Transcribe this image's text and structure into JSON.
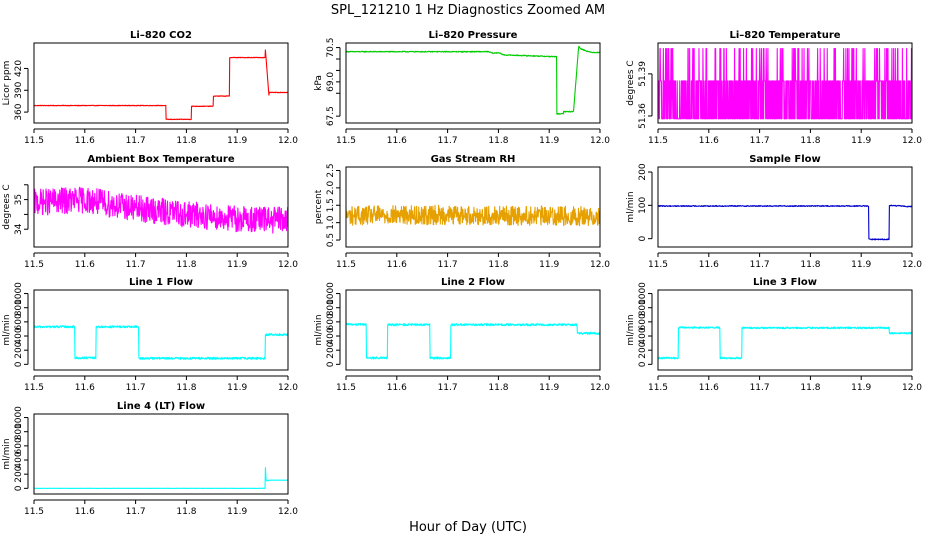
{
  "figure": {
    "title": "SPL_121210  1 Hz Diagnostics Zoomed AM",
    "xlabel": "Hour of Day (UTC)"
  },
  "chart_data": [
    {
      "type": "line",
      "title": "Li–820 CO2",
      "ylabel": "Licor ppm",
      "color": "#ff0000",
      "xlim": [
        11.5,
        12.0
      ],
      "ylim": [
        345,
        455
      ],
      "xticks": [
        11.5,
        11.6,
        11.7,
        11.8,
        11.9,
        12.0
      ],
      "yticks": [
        360,
        390,
        420
      ],
      "noise": 0.4,
      "x": [
        11.5,
        11.76,
        11.76,
        11.81,
        11.81,
        11.853,
        11.853,
        11.885,
        11.885,
        11.955,
        11.955,
        11.963,
        11.963,
        12.0
      ],
      "y": [
        369,
        369,
        350,
        350,
        368,
        368,
        382,
        382,
        435,
        435,
        450,
        378,
        387,
        387
      ]
    },
    {
      "type": "line",
      "title": "Li–820 Pressure",
      "ylabel": "kPa",
      "color": "#00cc00",
      "xlim": [
        11.5,
        12.0
      ],
      "ylim": [
        67.2,
        70.7
      ],
      "xticks": [
        11.5,
        11.6,
        11.7,
        11.8,
        11.9,
        12.0
      ],
      "yticks": [
        67.5,
        68.5,
        69.0,
        69.5,
        70.0,
        70.5
      ],
      "ytick_labels_shown": [
        67.5,
        69.0,
        70.5
      ],
      "noise": 0.02,
      "x": [
        11.5,
        11.78,
        11.79,
        11.8,
        11.81,
        11.915,
        11.915,
        11.928,
        11.928,
        11.948,
        11.948,
        11.958,
        11.962,
        11.98,
        12.0
      ],
      "y": [
        70.32,
        70.32,
        70.25,
        70.28,
        70.18,
        70.1,
        67.6,
        67.6,
        67.7,
        67.7,
        67.75,
        70.55,
        70.45,
        70.3,
        70.28
      ]
    },
    {
      "type": "line",
      "title": "Li–820 Temperature",
      "ylabel": "degrees C",
      "color": "#ff00ff",
      "xlim": [
        11.5,
        12.0
      ],
      "ylim": [
        51.355,
        51.412
      ],
      "xticks": [
        11.5,
        11.6,
        11.7,
        11.8,
        11.9,
        12.0
      ],
      "yticks": [
        51.36,
        51.39
      ],
      "pattern": "toggle",
      "levels": [
        51.358,
        51.385,
        51.408
      ]
    },
    {
      "type": "line",
      "title": "Ambient Box Temperature",
      "ylabel": "degrees C",
      "color": "#ff00ff",
      "xlim": [
        11.5,
        12.0
      ],
      "ylim": [
        33.4,
        36.1
      ],
      "xticks": [
        11.5,
        11.6,
        11.7,
        11.8,
        11.9,
        12.0
      ],
      "yticks": [
        34.0,
        34.5,
        35.0,
        35.5
      ],
      "ytick_labels_shown": [
        34.0,
        35.0
      ],
      "noise": 0.45,
      "x": [
        11.5,
        11.6,
        11.7,
        11.8,
        11.9,
        12.0
      ],
      "y": [
        34.9,
        35.0,
        34.7,
        34.5,
        34.35,
        34.3
      ]
    },
    {
      "type": "line",
      "title": "Gas Stream RH",
      "ylabel": "percent",
      "color": "#e6a000",
      "xlim": [
        11.5,
        12.0
      ],
      "ylim": [
        0.3,
        2.6
      ],
      "xticks": [
        11.5,
        11.6,
        11.7,
        11.8,
        11.9,
        12.0
      ],
      "yticks": [
        0.5,
        1.0,
        1.5,
        2.0,
        2.5
      ],
      "noise": 0.28,
      "x": [
        11.5,
        11.6,
        11.7,
        11.8,
        11.9,
        12.0
      ],
      "y": [
        1.2,
        1.22,
        1.22,
        1.2,
        1.2,
        1.18
      ]
    },
    {
      "type": "line",
      "title": "Sample Flow",
      "ylabel": "ml/min",
      "color": "#0000cc",
      "xlim": [
        11.5,
        12.0
      ],
      "ylim": [
        -25,
        215
      ],
      "xticks": [
        11.5,
        11.6,
        11.7,
        11.8,
        11.9,
        12.0
      ],
      "yticks": [
        0,
        100,
        200
      ],
      "noise": 1.5,
      "x": [
        11.5,
        11.915,
        11.915,
        11.955,
        11.955,
        12.0
      ],
      "y": [
        98,
        98,
        -2,
        -2,
        100,
        96
      ]
    },
    {
      "type": "line",
      "title": "Line 1 Flow",
      "ylabel": "ml/min",
      "color": "#00ffff",
      "xlim": [
        11.5,
        12.0
      ],
      "ylim": [
        -80,
        1050
      ],
      "xticks": [
        11.5,
        11.6,
        11.7,
        11.8,
        11.9,
        12.0
      ],
      "yticks": [
        0,
        200,
        400,
        600,
        800,
        1000
      ],
      "noise": 15,
      "x": [
        11.5,
        11.58,
        11.58,
        11.622,
        11.622,
        11.706,
        11.706,
        11.955,
        11.955,
        12.0
      ],
      "y": [
        530,
        530,
        90,
        90,
        530,
        530,
        85,
        85,
        420,
        420
      ]
    },
    {
      "type": "line",
      "title": "Line 2 Flow",
      "ylabel": "ml/min",
      "color": "#00ffff",
      "xlim": [
        11.5,
        12.0
      ],
      "ylim": [
        -80,
        1050
      ],
      "xticks": [
        11.5,
        11.6,
        11.7,
        11.8,
        11.9,
        12.0
      ],
      "yticks": [
        0,
        200,
        400,
        600,
        800,
        1000
      ],
      "noise": 15,
      "x": [
        11.5,
        11.54,
        11.54,
        11.582,
        11.582,
        11.665,
        11.665,
        11.706,
        11.706,
        11.955,
        11.955,
        12.0
      ],
      "y": [
        565,
        565,
        90,
        90,
        560,
        560,
        90,
        90,
        560,
        560,
        440,
        440
      ]
    },
    {
      "type": "line",
      "title": "Line 3 Flow",
      "ylabel": "ml/min",
      "color": "#00ffff",
      "xlim": [
        11.5,
        12.0
      ],
      "ylim": [
        -80,
        1050
      ],
      "xticks": [
        11.5,
        11.6,
        11.7,
        11.8,
        11.9,
        12.0
      ],
      "yticks": [
        0,
        200,
        400,
        600,
        800,
        1000
      ],
      "noise": 12,
      "x": [
        11.5,
        11.54,
        11.54,
        11.622,
        11.622,
        11.665,
        11.665,
        11.955,
        11.955,
        12.0
      ],
      "y": [
        90,
        90,
        520,
        520,
        90,
        90,
        515,
        515,
        440,
        440
      ]
    },
    {
      "type": "line",
      "title": "Line 4 (LT) Flow",
      "ylabel": "ml/min",
      "color": "#00ffff",
      "xlim": [
        11.5,
        12.0
      ],
      "ylim": [
        -80,
        1050
      ],
      "xticks": [
        11.5,
        11.6,
        11.7,
        11.8,
        11.9,
        12.0
      ],
      "yticks": [
        0,
        200,
        400,
        600,
        800,
        1000
      ],
      "noise": 2,
      "x": [
        11.5,
        11.955,
        11.955,
        11.957,
        11.96,
        11.962,
        12.0
      ],
      "y": [
        0,
        0,
        350,
        110,
        105,
        115,
        115
      ]
    }
  ]
}
